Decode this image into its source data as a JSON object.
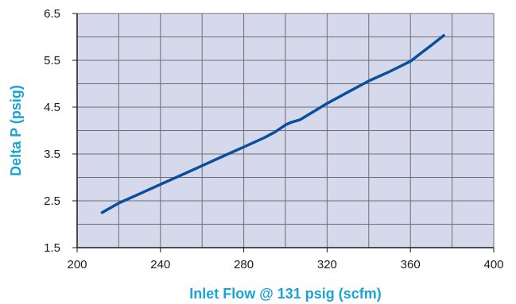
{
  "chart_data": {
    "type": "line",
    "title": "",
    "xlabel": "Inlet Flow @ 131 psig (scfm)",
    "ylabel": "Delta P (psig)",
    "xlim": [
      200,
      400
    ],
    "ylim": [
      1.5,
      6.5
    ],
    "x_ticks": [
      "200",
      "240",
      "280",
      "320",
      "360",
      "400"
    ],
    "y_ticks": [
      "1.5",
      "2.5",
      "3.5",
      "4.5",
      "5.5",
      "6.5"
    ],
    "grid": true,
    "colors": {
      "plot_background": "#d6d9ec",
      "grid": "#6e6e6e",
      "line": "#0b4f9c",
      "axis_title": "#1aa3d8",
      "axis": "#1a1a1a"
    },
    "series": [
      {
        "x": [
          212,
          220,
          230,
          240,
          250,
          260,
          270,
          280,
          290,
          295,
          300,
          303,
          307,
          320,
          330,
          340,
          350,
          360,
          365,
          370,
          376
        ],
        "values": [
          2.25,
          2.45,
          2.65,
          2.85,
          3.05,
          3.25,
          3.45,
          3.65,
          3.85,
          3.97,
          4.12,
          4.18,
          4.23,
          4.58,
          4.82,
          5.06,
          5.26,
          5.48,
          5.65,
          5.82,
          6.03
        ]
      }
    ]
  }
}
